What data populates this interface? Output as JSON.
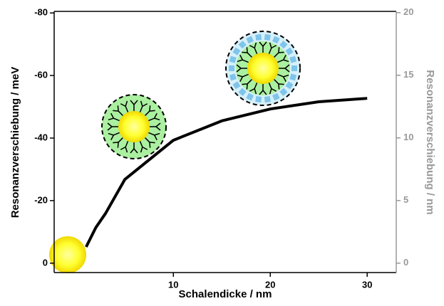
{
  "chart_data": {
    "type": "line",
    "xlabel": "Schalendicke / nm",
    "ylabel": "Resonanzverschiebung / meV",
    "y2label": "Resonanzverschiebung / nm",
    "xlim": [
      -2.3,
      33
    ],
    "xticks": [
      10,
      20,
      30
    ],
    "ylim": [
      3,
      -80.5
    ],
    "yticks": [
      0,
      -20,
      -40,
      -60,
      -80
    ],
    "y2lim": [
      -0.75,
      20.1
    ],
    "y2ticks": [
      0,
      5,
      10,
      15,
      20
    ],
    "y2color": "#999999",
    "x": [
      1,
      2,
      3,
      5,
      10,
      15,
      20,
      25,
      30
    ],
    "series": [
      {
        "color": "#000000",
        "values": [
          -5.2,
          -11.4,
          -15.9,
          -26.8,
          -39.3,
          -45.5,
          -49.3,
          -51.6,
          -52.7
        ]
      }
    ]
  }
}
